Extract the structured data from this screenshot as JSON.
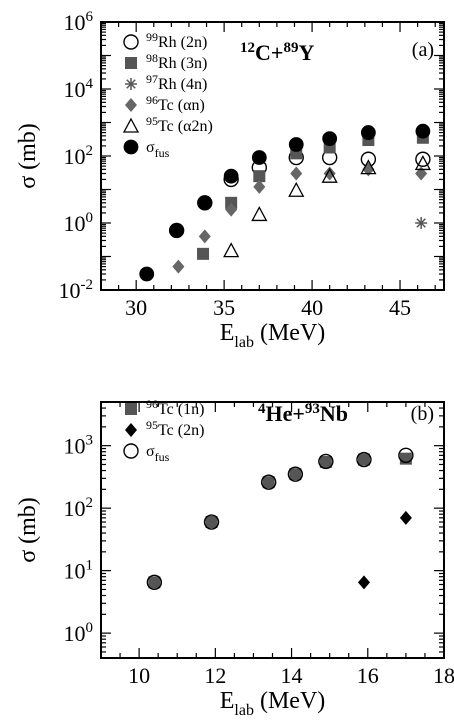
{
  "chart_data": [
    {
      "type": "scatter",
      "panel_label": "(a)",
      "reaction": {
        "a_mass": "12",
        "a_sym": "C+",
        "b_mass": "89",
        "b_sym": "Y"
      },
      "xlabel": {
        "main": "E",
        "sub": "lab",
        "unit": " (MeV)"
      },
      "ylabel": {
        "main": "σ",
        "unit": " (mb)"
      },
      "xlim": [
        28,
        47.5
      ],
      "ylim": [
        0.01,
        1000000
      ],
      "yscale": "log",
      "xticks": [
        {
          "value": 30,
          "label": "30"
        },
        {
          "value": 35,
          "label": "35"
        },
        {
          "value": 40,
          "label": "40"
        },
        {
          "value": 45,
          "label": "45"
        }
      ],
      "yticks": [
        {
          "value": 0.01,
          "base": "10",
          "exp": "-2"
        },
        {
          "value": 1,
          "base": "10",
          "exp": "0"
        },
        {
          "value": 100,
          "base": "10",
          "exp": "2"
        },
        {
          "value": 10000,
          "base": "10",
          "exp": "4"
        },
        {
          "value": 1000000,
          "base": "10",
          "exp": "6"
        }
      ],
      "legend_position": "top-left",
      "series": [
        {
          "name": "99Rh (2n)",
          "legend": {
            "mass": "99",
            "sym": "Rh",
            "chan": " (2n)"
          },
          "marker": "open-circle",
          "color": "#000000",
          "x": [
            32.3,
            33.9,
            35.4,
            37.0,
            39.1,
            41.0,
            43.2,
            46.3
          ],
          "y": [
            0.6,
            4.0,
            20,
            45,
            90,
            90,
            80,
            80
          ]
        },
        {
          "name": "98Rh (3n)",
          "legend": {
            "mass": "98",
            "sym": "Rh",
            "chan": " (3n)"
          },
          "marker": "filled-square",
          "color": "#555555",
          "x": [
            33.8,
            35.4,
            37.0,
            39.1,
            41.0,
            43.2,
            46.3
          ],
          "y": [
            0.12,
            4.0,
            25,
            120,
            180,
            300,
            350
          ]
        },
        {
          "name": "97Rh (4n)",
          "legend": {
            "mass": "97",
            "sym": "Rh",
            "chan": " (4n)"
          },
          "marker": "asterisk",
          "color": "#555555",
          "x": [
            46.2
          ],
          "y": [
            1.0
          ]
        },
        {
          "name": "96Tc (αn)",
          "legend": {
            "mass": "96",
            "sym": "Tc",
            "chan": " (αn)"
          },
          "marker": "filled-diamond",
          "color": "#666666",
          "x": [
            32.4,
            33.9,
            35.4,
            37.0,
            39.1,
            41.0,
            43.2,
            46.2
          ],
          "y": [
            0.05,
            0.4,
            2.5,
            12,
            30,
            30,
            40,
            30
          ]
        },
        {
          "name": "95Tc (α2n)",
          "legend": {
            "mass": "95",
            "sym": "Tc",
            "chan": " (α2n)"
          },
          "marker": "open-triangle",
          "color": "#000000",
          "x": [
            35.4,
            37.0,
            39.1,
            41.0,
            43.2,
            46.3
          ],
          "y": [
            0.15,
            1.8,
            9.5,
            25,
            45,
            60
          ]
        },
        {
          "name": "σfus",
          "legend": {
            "mass": "",
            "sym": "σ",
            "sub": "fus",
            "chan": ""
          },
          "marker": "filled-circle",
          "color": "#000000",
          "x": [
            30.6,
            32.3,
            33.9,
            35.4,
            37.0,
            39.1,
            41.0,
            43.2,
            46.3
          ],
          "y": [
            0.03,
            0.6,
            4.0,
            25,
            90,
            220,
            330,
            500,
            550
          ]
        }
      ]
    },
    {
      "type": "scatter",
      "panel_label": "(b)",
      "reaction": {
        "a_mass": "4",
        "a_sym": "He+",
        "b_mass": "93",
        "b_sym": "Nb"
      },
      "xlabel": {
        "main": "E",
        "sub": "lab",
        "unit": " (MeV)"
      },
      "ylabel": {
        "main": "σ",
        "unit": " (mb)"
      },
      "xlim": [
        9,
        18
      ],
      "ylim": [
        0.4,
        5000
      ],
      "yscale": "log",
      "xticks": [
        {
          "value": 10,
          "label": "10"
        },
        {
          "value": 12,
          "label": "12"
        },
        {
          "value": 14,
          "label": "14"
        },
        {
          "value": 16,
          "label": "16"
        },
        {
          "value": 18,
          "label": "18"
        }
      ],
      "yticks": [
        {
          "value": 1,
          "base": "10",
          "exp": "0"
        },
        {
          "value": 10,
          "base": "10",
          "exp": "1"
        },
        {
          "value": 100,
          "base": "10",
          "exp": "2"
        },
        {
          "value": 1000,
          "base": "10",
          "exp": "3"
        }
      ],
      "legend_position": "top-left",
      "series": [
        {
          "name": "96Tc (1n)",
          "legend": {
            "mass": "96",
            "sym": "Tc",
            "chan": " (1n)"
          },
          "marker": "filled-square",
          "color": "#555555",
          "x": [
            10.4,
            11.9,
            13.4,
            14.1,
            14.9,
            15.9,
            17.0
          ],
          "y": [
            6.5,
            60,
            260,
            350,
            550,
            600,
            620
          ]
        },
        {
          "name": "95Tc (2n)",
          "legend": {
            "mass": "95",
            "sym": "Tc",
            "chan": " (2n)"
          },
          "marker": "filled-diamond",
          "color": "#000000",
          "x": [
            15.9,
            17.0
          ],
          "y": [
            6.5,
            70
          ]
        },
        {
          "name": "σfus",
          "legend": {
            "mass": "",
            "sym": "σ",
            "sub": "fus",
            "chan": ""
          },
          "marker": "open-circle",
          "color": "#000000",
          "x": [
            10.4,
            11.9,
            13.4,
            14.1,
            14.9,
            15.9,
            17.0
          ],
          "y": [
            6.5,
            60,
            260,
            350,
            560,
            600,
            700
          ]
        }
      ]
    }
  ]
}
